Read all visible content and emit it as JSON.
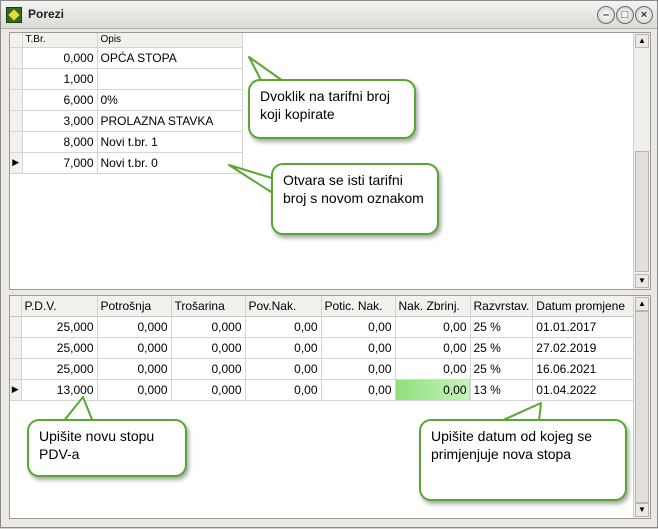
{
  "window": {
    "title": "Porezi"
  },
  "top_table": {
    "headers": [
      "T.Br.",
      "Opis"
    ],
    "rows": [
      {
        "tbr": "0,000",
        "opis": "OPĆA STOPA"
      },
      {
        "tbr": "1,000",
        "opis": ""
      },
      {
        "tbr": "6,000",
        "opis": "0%"
      },
      {
        "tbr": "3,000",
        "opis": "PROLAZNA STAVKA"
      },
      {
        "tbr": "8,000",
        "opis": "Novi t.br. 1"
      },
      {
        "tbr": "7,000",
        "opis": "Novi t.br. 0"
      }
    ],
    "current_row_indicator": "▶"
  },
  "bottom_table": {
    "headers": [
      "P.D.V.",
      "Potrošnja",
      "Trošarina",
      "Pov.Nak.",
      "Potic. Nak.",
      "Nak. Zbrinj.",
      "Razvrstav.",
      "Datum promjene"
    ],
    "rows": [
      {
        "pdv": "25,000",
        "potrosnja": "0,000",
        "trosarina": "0,000",
        "povnak": "0,00",
        "poticnak": "0,00",
        "nakzbrinj": "0,00",
        "razvrst": "25 %",
        "datum": "01.01.2017"
      },
      {
        "pdv": "25,000",
        "potrosnja": "0,000",
        "trosarina": "0,000",
        "povnak": "0,00",
        "poticnak": "0,00",
        "nakzbrinj": "0,00",
        "razvrst": "25 %",
        "datum": "27.02.2019"
      },
      {
        "pdv": "25,000",
        "potrosnja": "0,000",
        "trosarina": "0,000",
        "povnak": "0,00",
        "poticnak": "0,00",
        "nakzbrinj": "0,00",
        "razvrst": "25 %",
        "datum": "16.06.2021"
      },
      {
        "pdv": "13,000",
        "potrosnja": "0,000",
        "trosarina": "0,000",
        "povnak": "0,00",
        "poticnak": "0,00",
        "nakzbrinj": "0,00",
        "razvrst": "13 %",
        "datum": "01.04.2022"
      }
    ],
    "current_row_indicator": "▶",
    "highlight_color": "#8ee07a"
  },
  "callouts": {
    "c1": "Dvoklik na tarifni broj koji kopirate",
    "c2": "Otvara se isti tarifni broj s novom oznakom",
    "c3": "Upišite novu stopu PDV-a",
    "c4": "Upišite datum od kojeg se primjenjuje nova stopa"
  },
  "colors": {
    "callout_border": "#5aa632",
    "window_bg": "#ece9e4"
  },
  "icons": {
    "app": "porezi-app-icon",
    "minimize": "minimize-icon",
    "maximize": "maximize-icon",
    "close": "close-icon"
  }
}
